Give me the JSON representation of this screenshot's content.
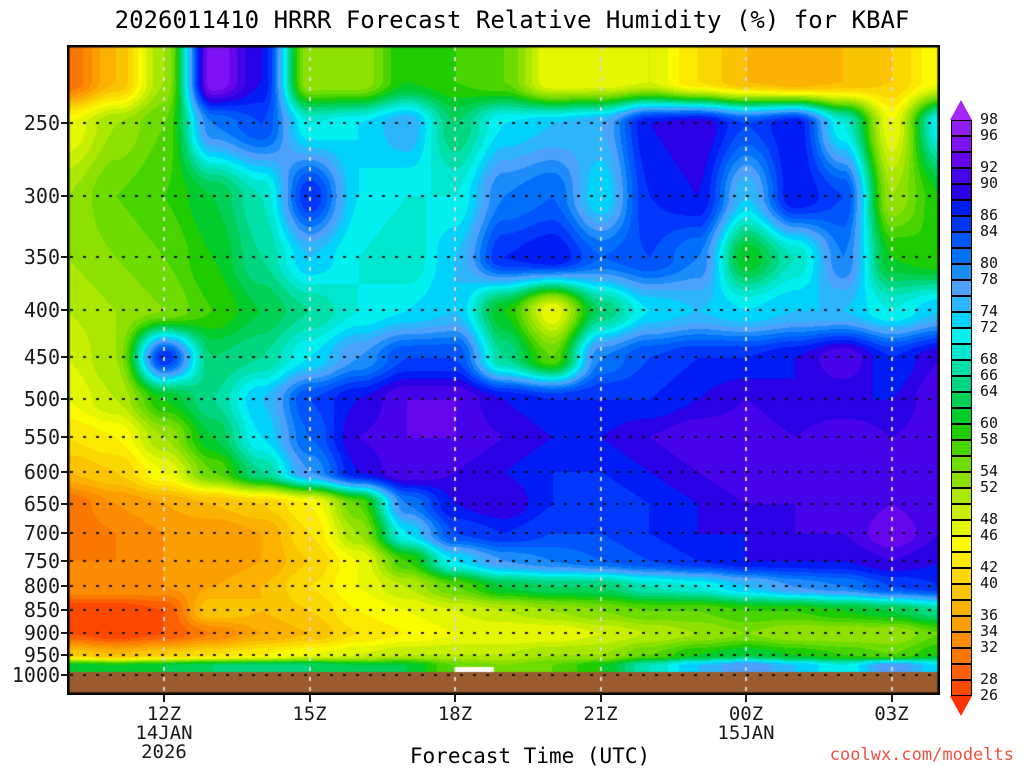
{
  "title": "2026011410 HRRR Forecast Relative Humidity (%) for KBAF",
  "watermark": {
    "text": "coolwx.com/modelts",
    "color": "#ef5044"
  },
  "x_axis": {
    "title": "Forecast Time (UTC)",
    "tick_labels": [
      "12Z",
      "15Z",
      "18Z",
      "21Z",
      "00Z",
      "03Z"
    ],
    "tick_hours": [
      12,
      15,
      18,
      21,
      24,
      27
    ],
    "date_labels": [
      {
        "text": "14JAN",
        "hour": 12,
        "line": 1
      },
      {
        "text": "2026",
        "hour": 12,
        "line": 2
      },
      {
        "text": "15JAN",
        "hour": 24,
        "line": 1
      }
    ]
  },
  "y_axis": {
    "tick_labels": [
      "250",
      "300",
      "350",
      "400",
      "450",
      "500",
      "550",
      "600",
      "650",
      "700",
      "750",
      "800",
      "850",
      "900",
      "950",
      "1000"
    ],
    "tick_levels": [
      250,
      300,
      350,
      400,
      450,
      500,
      550,
      600,
      650,
      700,
      750,
      800,
      850,
      900,
      950,
      1000
    ],
    "units": "hPa"
  },
  "colorbar": {
    "visible_labels": [
      26,
      28,
      32,
      34,
      36,
      40,
      42,
      46,
      48,
      52,
      54,
      58,
      60,
      64,
      66,
      68,
      72,
      74,
      78,
      80,
      84,
      86,
      90,
      92,
      96,
      98
    ],
    "min": 26,
    "max": 98,
    "step": 2,
    "arrow_low_label": "below-26",
    "arrow_high_label": "above-98"
  },
  "chart_data": {
    "type": "heatmap",
    "title": "2026011410 HRRR Forecast Relative Humidity (%) for KBAF",
    "parameter": "Relative Humidity (%)",
    "station": "KBAF",
    "xlabel": "Forecast Time (UTC)",
    "x_hours_utc": [
      10,
      11,
      12,
      13,
      14,
      15,
      16,
      17,
      18,
      19,
      20,
      21,
      22,
      23,
      24,
      25,
      26,
      27,
      28
    ],
    "pressure_levels_hpa": [
      225,
      250,
      300,
      350,
      400,
      450,
      500,
      550,
      600,
      650,
      700,
      750,
      800,
      850,
      900,
      950,
      975
    ],
    "rh_percent": [
      [
        30,
        38,
        52,
        96,
        88,
        52,
        52,
        60,
        58,
        56,
        46,
        46,
        48,
        42,
        38,
        36,
        38,
        40,
        46
      ],
      [
        46,
        52,
        56,
        80,
        84,
        70,
        72,
        76,
        64,
        72,
        74,
        76,
        88,
        90,
        84,
        88,
        70,
        46,
        72
      ],
      [
        52,
        56,
        58,
        62,
        68,
        86,
        72,
        70,
        70,
        80,
        82,
        72,
        86,
        88,
        74,
        88,
        84,
        52,
        60
      ],
      [
        52,
        54,
        56,
        60,
        66,
        74,
        70,
        68,
        74,
        86,
        88,
        82,
        84,
        80,
        60,
        68,
        80,
        60,
        58
      ],
      [
        50,
        52,
        54,
        58,
        62,
        66,
        70,
        72,
        74,
        60,
        46,
        64,
        72,
        74,
        72,
        74,
        74,
        70,
        74
      ],
      [
        48,
        52,
        86,
        64,
        66,
        72,
        78,
        84,
        84,
        66,
        56,
        80,
        84,
        86,
        86,
        88,
        92,
        86,
        90
      ],
      [
        46,
        50,
        60,
        66,
        74,
        84,
        88,
        92,
        92,
        88,
        86,
        86,
        86,
        88,
        90,
        88,
        88,
        88,
        92
      ],
      [
        42,
        44,
        52,
        62,
        72,
        82,
        90,
        92,
        92,
        90,
        88,
        88,
        90,
        92,
        92,
        90,
        92,
        90,
        92
      ],
      [
        38,
        40,
        46,
        56,
        66,
        78,
        88,
        92,
        90,
        88,
        86,
        86,
        88,
        90,
        92,
        92,
        90,
        92,
        90
      ],
      [
        30,
        34,
        36,
        38,
        40,
        44,
        56,
        80,
        88,
        90,
        86,
        84,
        86,
        88,
        90,
        90,
        90,
        92,
        90
      ],
      [
        30,
        32,
        34,
        34,
        36,
        42,
        52,
        72,
        84,
        86,
        84,
        84,
        86,
        88,
        88,
        90,
        90,
        94,
        90
      ],
      [
        32,
        32,
        34,
        34,
        36,
        40,
        46,
        58,
        72,
        78,
        80,
        82,
        84,
        86,
        88,
        88,
        88,
        90,
        88
      ],
      [
        34,
        34,
        34,
        36,
        38,
        42,
        46,
        50,
        56,
        62,
        64,
        64,
        68,
        70,
        74,
        78,
        80,
        84,
        86
      ],
      [
        26,
        26,
        28,
        40,
        38,
        40,
        44,
        46,
        48,
        50,
        52,
        54,
        56,
        56,
        58,
        58,
        60,
        62,
        66
      ],
      [
        28,
        26,
        28,
        32,
        36,
        38,
        42,
        44,
        46,
        46,
        46,
        48,
        50,
        52,
        54,
        52,
        52,
        52,
        56
      ],
      [
        40,
        38,
        40,
        42,
        44,
        46,
        48,
        50,
        50,
        50,
        52,
        52,
        56,
        60,
        62,
        60,
        58,
        56,
        60
      ],
      [
        62,
        60,
        62,
        64,
        64,
        64,
        62,
        62,
        56,
        54,
        56,
        60,
        68,
        74,
        78,
        74,
        70,
        78,
        72
      ]
    ],
    "band_start": 24,
    "band_size": 2,
    "palette": [
      "#fb3300",
      "#fb4a00",
      "#fb6100",
      "#fb7800",
      "#fb8b00",
      "#fb9e00",
      "#fbb100",
      "#fbc400",
      "#fbd700",
      "#fbe900",
      "#fbfb00",
      "#e4f600",
      "#c8ef00",
      "#abe800",
      "#8ee000",
      "#6fdc00",
      "#49d400",
      "#1fcc00",
      "#00cc2e",
      "#00d055",
      "#00d67f",
      "#00e0a8",
      "#00e6cf",
      "#00f0f0",
      "#00d2fb",
      "#2eb4fb",
      "#4da0fb",
      "#1e8bfb",
      "#0070fb",
      "#0055fb",
      "#0038fb",
      "#001cf4",
      "#2a00e4",
      "#4602e8",
      "#6606ee",
      "#7d13f2",
      "#8f1ef4",
      "#a428f4"
    ],
    "ground_color": "#9a5c2e",
    "grid_on": true,
    "legend_position": "right",
    "y_scale": "log-pressure",
    "x_range_hours": [
      10,
      28
    ],
    "notes_white_gap_segment": {
      "hour_start": 18.0,
      "hour_end": 18.8,
      "near_hpa": 985
    }
  }
}
